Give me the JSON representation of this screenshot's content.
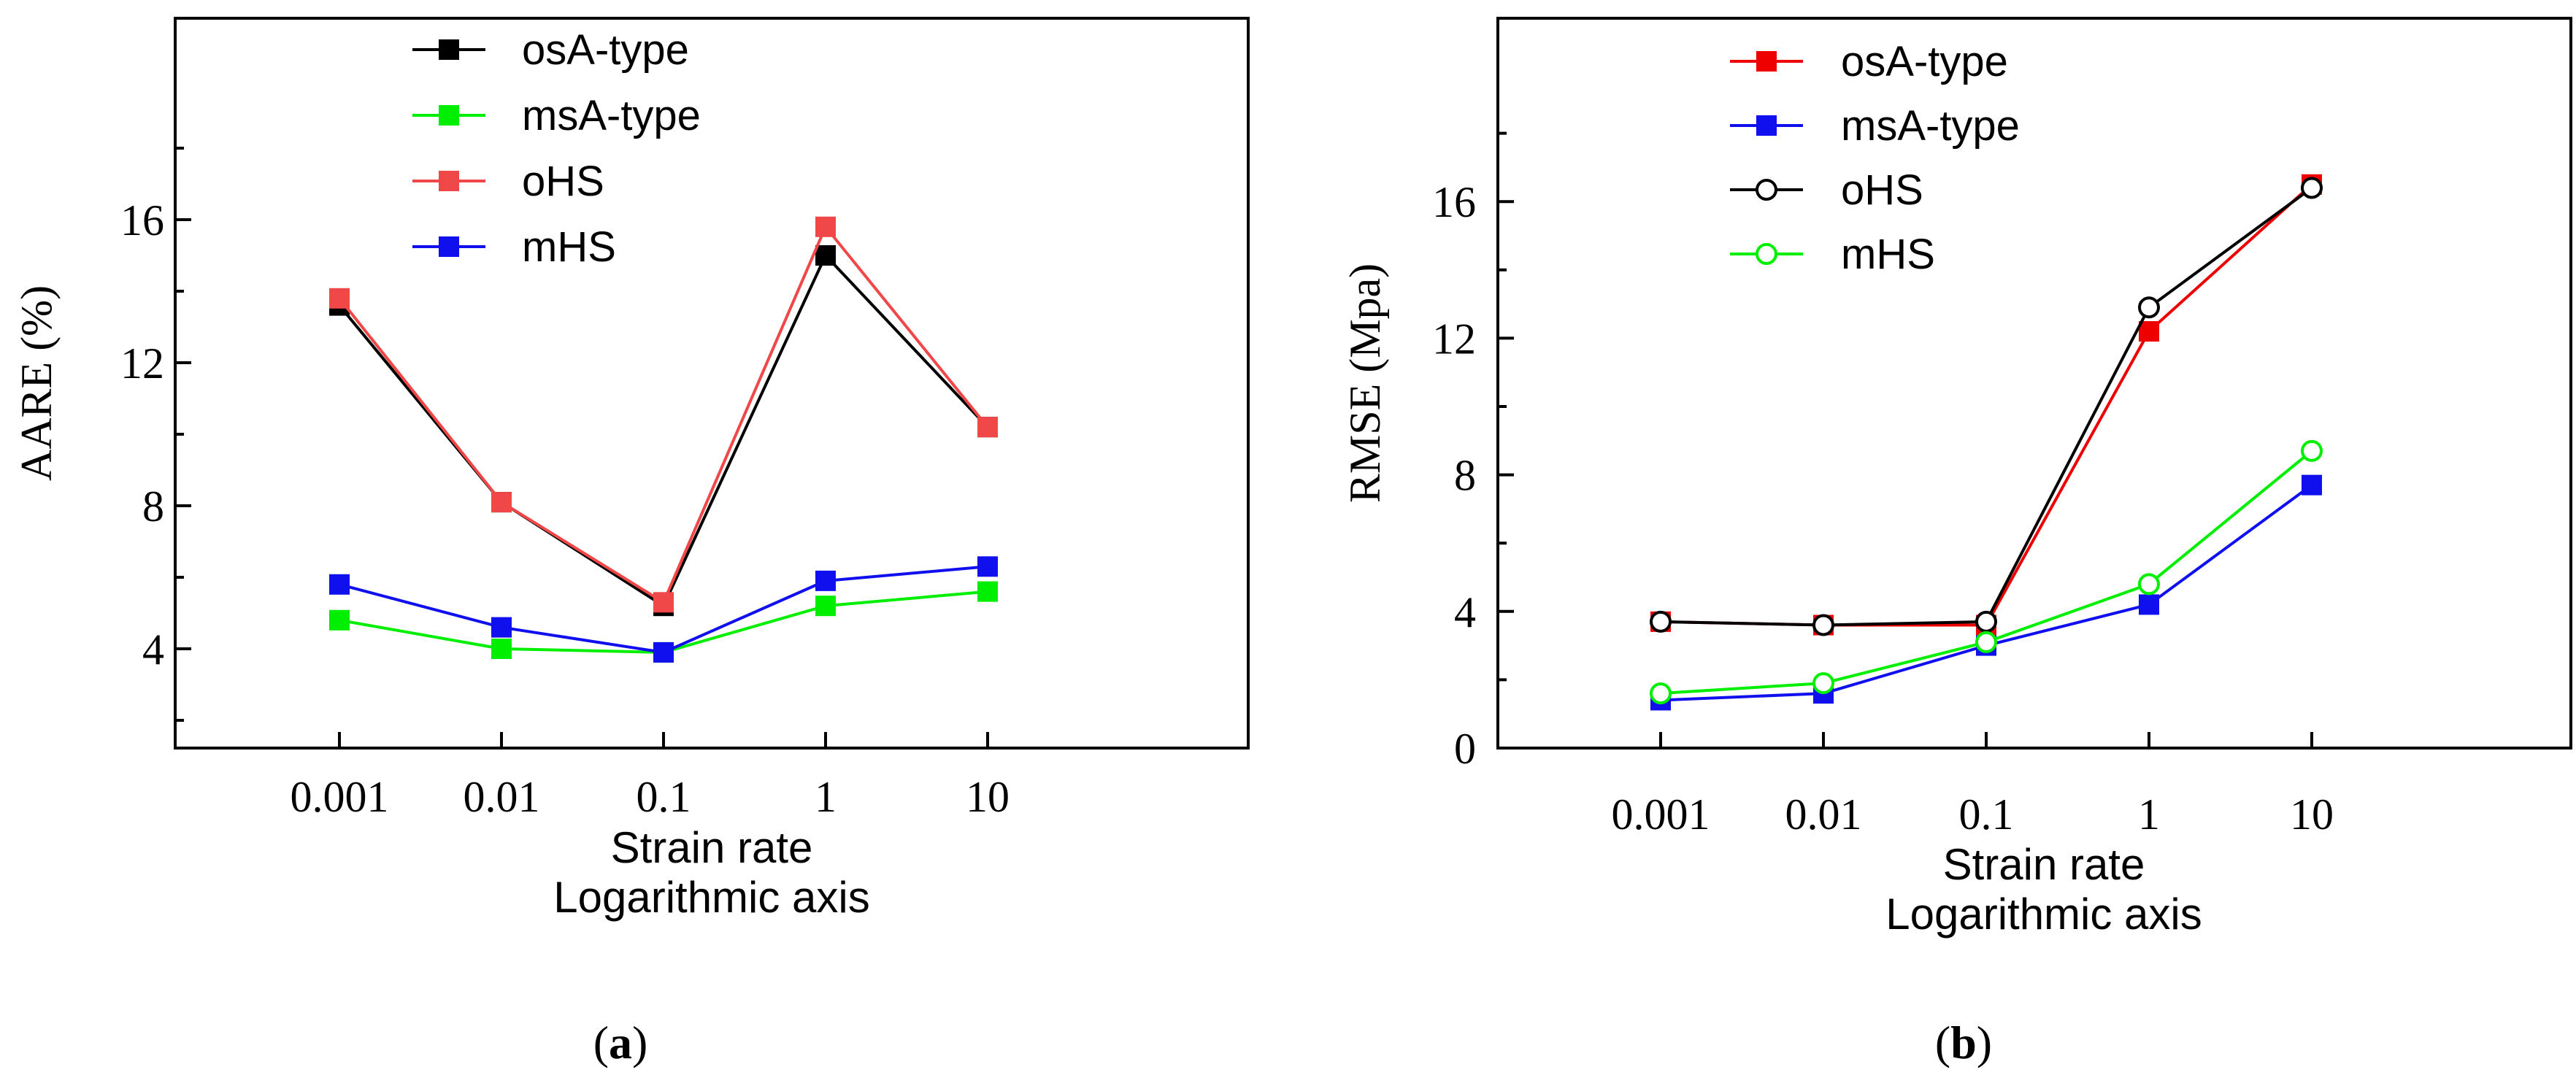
{
  "chart_data": [
    {
      "type": "line",
      "panel_label": "a",
      "xlabel": "Strain rate",
      "xlabel2": "Logarithmic axis",
      "ylabel": "AARE (%)",
      "categories": [
        "0.001",
        "0.01",
        "0.1",
        "1",
        "10"
      ],
      "ylim": [
        0,
        18.5
      ],
      "yticks": [
        4,
        8,
        12,
        16
      ],
      "grid": false,
      "legend_position": "top-center",
      "series": [
        {
          "name": "osA-type",
          "color": "#000000",
          "marker": "square-filled",
          "values": [
            13.6,
            8.1,
            5.2,
            15.0,
            10.2
          ]
        },
        {
          "name": "msA-type",
          "color": "#00ee00",
          "marker": "square-filled",
          "values": [
            4.8,
            4.0,
            3.9,
            5.2,
            5.6
          ]
        },
        {
          "name": "oHS",
          "color": "#f04848",
          "marker": "square-filled",
          "values": [
            13.8,
            8.1,
            5.3,
            15.8,
            10.2
          ]
        },
        {
          "name": "mHS",
          "color": "#1010ee",
          "marker": "square-filled",
          "values": [
            5.8,
            4.6,
            3.9,
            5.9,
            6.3
          ]
        }
      ]
    },
    {
      "type": "line",
      "panel_label": "b",
      "xlabel": "Strain rate",
      "xlabel2": "Logarithmic axis",
      "ylabel": "RMSE (Mpa)",
      "categories": [
        "0.001",
        "0.01",
        "0.1",
        "1",
        "10"
      ],
      "ylim": [
        0,
        18.5
      ],
      "yticks": [
        0,
        4,
        8,
        12,
        16
      ],
      "grid": false,
      "legend_position": "top-center",
      "series": [
        {
          "name": "osA-type",
          "color": "#ee0000",
          "marker": "square-filled",
          "values": [
            3.7,
            3.6,
            3.6,
            12.2,
            16.5
          ]
        },
        {
          "name": "msA-type",
          "color": "#1010ee",
          "marker": "square-filled",
          "values": [
            1.4,
            1.6,
            3.0,
            4.2,
            7.7
          ]
        },
        {
          "name": "oHS",
          "color": "#000000",
          "marker": "circle-open",
          "values": [
            3.7,
            3.6,
            3.7,
            12.9,
            16.4
          ]
        },
        {
          "name": "mHS",
          "color": "#00ee00",
          "marker": "circle-open",
          "values": [
            1.6,
            1.9,
            3.1,
            4.8,
            8.7
          ]
        }
      ]
    }
  ]
}
